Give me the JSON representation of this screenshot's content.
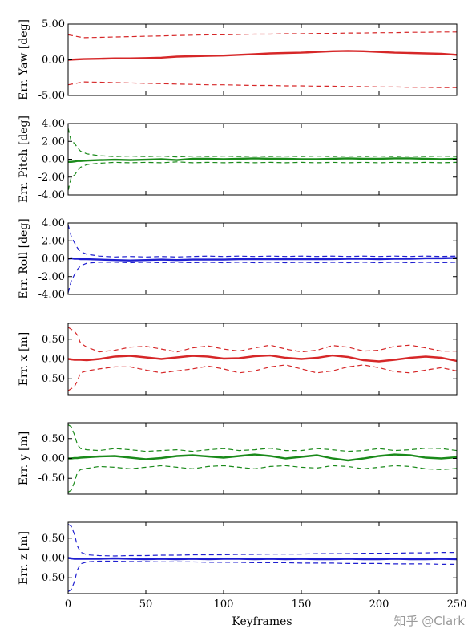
{
  "watermark": "知乎 @Clark",
  "xlabel": "Keyframes",
  "chart_data": [
    {
      "type": "line",
      "ylabel": "Err. Yaw [deg]",
      "ylim": [
        -5,
        5
      ],
      "yticks": [
        "5.00",
        "0.00",
        "-5.00"
      ],
      "ytick_values": [
        5,
        0,
        -5
      ],
      "color": "#d62728",
      "x": [
        0,
        10,
        20,
        30,
        40,
        50,
        60,
        70,
        80,
        90,
        100,
        110,
        120,
        130,
        140,
        150,
        160,
        170,
        180,
        190,
        200,
        210,
        220,
        230,
        240,
        250
      ],
      "series": [
        {
          "style": "solid",
          "values": [
            0.0,
            0.1,
            0.15,
            0.2,
            0.2,
            0.25,
            0.3,
            0.45,
            0.5,
            0.55,
            0.6,
            0.7,
            0.8,
            0.9,
            0.95,
            1.0,
            1.1,
            1.2,
            1.25,
            1.2,
            1.1,
            1.0,
            0.95,
            0.9,
            0.85,
            0.7
          ]
        },
        {
          "style": "dashed",
          "values": [
            3.5,
            3.1,
            3.15,
            3.2,
            3.25,
            3.3,
            3.35,
            3.4,
            3.45,
            3.5,
            3.5,
            3.55,
            3.6,
            3.6,
            3.65,
            3.65,
            3.7,
            3.7,
            3.75,
            3.75,
            3.8,
            3.8,
            3.85,
            3.85,
            3.9,
            3.9
          ]
        },
        {
          "style": "dashed",
          "values": [
            -3.5,
            -3.1,
            -3.15,
            -3.2,
            -3.25,
            -3.3,
            -3.35,
            -3.4,
            -3.45,
            -3.5,
            -3.5,
            -3.55,
            -3.6,
            -3.6,
            -3.65,
            -3.65,
            -3.7,
            -3.7,
            -3.75,
            -3.75,
            -3.8,
            -3.8,
            -3.85,
            -3.85,
            -3.9,
            -3.9
          ]
        }
      ]
    },
    {
      "type": "line",
      "ylabel": "Err. Pitch [deg]",
      "ylim": [
        -4,
        4
      ],
      "yticks": [
        "4.00",
        "2.00",
        "0.00",
        "-2.00",
        "-4.00"
      ],
      "ytick_values": [
        4,
        2,
        0,
        -2,
        -4
      ],
      "color": "#1a8a1a",
      "x": [
        0,
        2,
        4,
        6,
        8,
        12,
        20,
        30,
        40,
        50,
        60,
        70,
        80,
        90,
        100,
        110,
        120,
        130,
        140,
        150,
        160,
        170,
        180,
        190,
        200,
        210,
        220,
        230,
        240,
        250
      ],
      "series": [
        {
          "style": "solid",
          "values": [
            -0.3,
            -0.3,
            -0.25,
            -0.2,
            -0.2,
            -0.15,
            -0.1,
            -0.05,
            -0.1,
            -0.05,
            0.0,
            -0.1,
            0.05,
            0.05,
            0.0,
            0.05,
            0.1,
            0.05,
            0.05,
            0.0,
            0.0,
            0.05,
            0.1,
            0.05,
            0.05,
            0.1,
            0.1,
            0.05,
            0.0,
            0.05
          ]
        },
        {
          "style": "dashed",
          "values": [
            3.5,
            2.0,
            1.8,
            1.3,
            0.9,
            0.6,
            0.4,
            0.3,
            0.35,
            0.3,
            0.35,
            0.25,
            0.35,
            0.3,
            0.35,
            0.3,
            0.35,
            0.3,
            0.35,
            0.3,
            0.35,
            0.3,
            0.35,
            0.3,
            0.35,
            0.3,
            0.35,
            0.3,
            0.35,
            0.3
          ]
        },
        {
          "style": "dashed",
          "values": [
            -3.5,
            -2.0,
            -1.8,
            -1.3,
            -0.9,
            -0.6,
            -0.45,
            -0.35,
            -0.4,
            -0.35,
            -0.4,
            -0.3,
            -0.4,
            -0.35,
            -0.4,
            -0.35,
            -0.4,
            -0.35,
            -0.4,
            -0.35,
            -0.4,
            -0.35,
            -0.4,
            -0.35,
            -0.4,
            -0.35,
            -0.4,
            -0.35,
            -0.4,
            -0.35
          ]
        }
      ]
    },
    {
      "type": "line",
      "ylabel": "Err. Roll [deg]",
      "ylim": [
        -4,
        4
      ],
      "yticks": [
        "4.00",
        "2.00",
        "0.00",
        "-2.00",
        "-4.00"
      ],
      "ytick_values": [
        4,
        2,
        0,
        -2,
        -4
      ],
      "color": "#1f1fd0",
      "x": [
        0,
        2,
        4,
        6,
        8,
        12,
        20,
        30,
        40,
        50,
        60,
        70,
        80,
        90,
        100,
        110,
        120,
        130,
        140,
        150,
        160,
        170,
        180,
        190,
        200,
        210,
        220,
        230,
        240,
        250
      ],
      "series": [
        {
          "style": "solid",
          "values": [
            0.0,
            0.05,
            0.0,
            0.0,
            -0.05,
            -0.05,
            -0.1,
            -0.15,
            -0.2,
            -0.15,
            -0.1,
            -0.15,
            -0.1,
            -0.1,
            -0.1,
            -0.05,
            -0.05,
            -0.05,
            -0.05,
            -0.05,
            -0.05,
            -0.05,
            0.0,
            0.0,
            -0.05,
            0.0,
            0.0,
            0.05,
            0.05,
            0.1
          ]
        },
        {
          "style": "dashed",
          "values": [
            3.8,
            2.5,
            1.8,
            1.2,
            0.8,
            0.5,
            0.3,
            0.2,
            0.25,
            0.2,
            0.25,
            0.2,
            0.25,
            0.3,
            0.25,
            0.3,
            0.25,
            0.3,
            0.25,
            0.3,
            0.25,
            0.3,
            0.25,
            0.3,
            0.25,
            0.3,
            0.25,
            0.3,
            0.25,
            0.3
          ]
        },
        {
          "style": "dashed",
          "values": [
            -3.8,
            -2.5,
            -1.8,
            -1.2,
            -0.8,
            -0.5,
            -0.4,
            -0.4,
            -0.45,
            -0.4,
            -0.45,
            -0.4,
            -0.45,
            -0.4,
            -0.45,
            -0.4,
            -0.45,
            -0.4,
            -0.45,
            -0.4,
            -0.45,
            -0.4,
            -0.45,
            -0.4,
            -0.45,
            -0.4,
            -0.45,
            -0.4,
            -0.45,
            -0.4
          ]
        }
      ]
    },
    {
      "type": "line",
      "ylabel": "Err. x [m]",
      "ylim": [
        -0.9,
        0.9
      ],
      "yticks": [
        "0.50",
        "0.00",
        "-0.50"
      ],
      "ytick_values": [
        0.5,
        0,
        -0.5
      ],
      "color": "#d62728",
      "x": [
        0,
        2,
        4,
        6,
        8,
        12,
        20,
        30,
        40,
        50,
        60,
        70,
        80,
        90,
        100,
        110,
        120,
        130,
        140,
        150,
        160,
        170,
        180,
        190,
        200,
        210,
        220,
        230,
        240,
        250
      ],
      "series": [
        {
          "style": "solid",
          "values": [
            0.0,
            -0.01,
            -0.02,
            -0.02,
            -0.02,
            -0.03,
            0.0,
            0.06,
            0.08,
            0.04,
            0.0,
            0.04,
            0.08,
            0.06,
            0.01,
            0.02,
            0.07,
            0.09,
            0.03,
            0.0,
            0.03,
            0.09,
            0.05,
            -0.03,
            -0.06,
            -0.02,
            0.03,
            0.06,
            0.03,
            -0.05
          ]
        },
        {
          "style": "dashed",
          "values": [
            0.8,
            0.75,
            0.7,
            0.6,
            0.4,
            0.3,
            0.18,
            0.22,
            0.3,
            0.32,
            0.25,
            0.18,
            0.28,
            0.33,
            0.25,
            0.2,
            0.28,
            0.35,
            0.25,
            0.18,
            0.22,
            0.34,
            0.3,
            0.2,
            0.22,
            0.32,
            0.35,
            0.28,
            0.2,
            0.2
          ]
        },
        {
          "style": "dashed",
          "values": [
            -0.8,
            -0.75,
            -0.7,
            -0.55,
            -0.35,
            -0.3,
            -0.25,
            -0.2,
            -0.2,
            -0.28,
            -0.35,
            -0.3,
            -0.25,
            -0.18,
            -0.25,
            -0.35,
            -0.3,
            -0.2,
            -0.15,
            -0.25,
            -0.35,
            -0.3,
            -0.2,
            -0.15,
            -0.22,
            -0.32,
            -0.35,
            -0.28,
            -0.22,
            -0.3
          ]
        }
      ]
    },
    {
      "type": "line",
      "ylabel": "Err. y [m]",
      "ylim": [
        -0.9,
        0.9
      ],
      "yticks": [
        "0.50",
        "0.00",
        "-0.50"
      ],
      "ytick_values": [
        0.5,
        0,
        -0.5
      ],
      "color": "#1a8a1a",
      "x": [
        0,
        2,
        4,
        6,
        8,
        12,
        20,
        30,
        40,
        50,
        60,
        70,
        80,
        90,
        100,
        110,
        120,
        130,
        140,
        150,
        160,
        170,
        180,
        190,
        200,
        210,
        220,
        230,
        240,
        250
      ],
      "series": [
        {
          "style": "solid",
          "values": [
            0.0,
            0.0,
            0.01,
            0.01,
            0.02,
            0.03,
            0.05,
            0.06,
            0.02,
            -0.02,
            0.01,
            0.06,
            0.08,
            0.05,
            0.02,
            0.06,
            0.1,
            0.06,
            0.0,
            0.04,
            0.08,
            0.0,
            -0.05,
            0.0,
            0.06,
            0.1,
            0.08,
            0.02,
            0.0,
            0.03
          ]
        },
        {
          "style": "dashed",
          "values": [
            0.85,
            0.8,
            0.6,
            0.35,
            0.25,
            0.22,
            0.2,
            0.25,
            0.22,
            0.18,
            0.2,
            0.22,
            0.18,
            0.22,
            0.25,
            0.2,
            0.22,
            0.26,
            0.2,
            0.2,
            0.25,
            0.22,
            0.18,
            0.2,
            0.25,
            0.2,
            0.22,
            0.26,
            0.25,
            0.2
          ]
        },
        {
          "style": "dashed",
          "values": [
            -0.85,
            -0.8,
            -0.6,
            -0.35,
            -0.28,
            -0.25,
            -0.2,
            -0.22,
            -0.26,
            -0.22,
            -0.18,
            -0.22,
            -0.26,
            -0.2,
            -0.18,
            -0.22,
            -0.26,
            -0.2,
            -0.18,
            -0.22,
            -0.24,
            -0.18,
            -0.2,
            -0.26,
            -0.22,
            -0.18,
            -0.2,
            -0.26,
            -0.28,
            -0.25
          ]
        }
      ]
    },
    {
      "type": "line",
      "ylabel": "Err. z [m]",
      "ylim": [
        -0.9,
        0.9
      ],
      "yticks": [
        "0.50",
        "0.00",
        "-0.50"
      ],
      "ytick_values": [
        0.5,
        0,
        -0.5
      ],
      "color": "#1f1fd0",
      "x": [
        0,
        2,
        4,
        6,
        8,
        12,
        20,
        30,
        40,
        50,
        60,
        70,
        80,
        90,
        100,
        110,
        120,
        130,
        140,
        150,
        160,
        170,
        180,
        190,
        200,
        210,
        220,
        230,
        240,
        250
      ],
      "series": [
        {
          "style": "solid",
          "values": [
            0.0,
            -0.01,
            -0.02,
            -0.02,
            -0.02,
            -0.02,
            -0.02,
            -0.01,
            -0.02,
            -0.03,
            -0.02,
            -0.03,
            -0.02,
            -0.03,
            -0.02,
            -0.02,
            -0.03,
            -0.02,
            -0.03,
            -0.02,
            -0.03,
            -0.03,
            -0.02,
            -0.03,
            -0.03,
            -0.02,
            -0.03,
            -0.03,
            -0.02,
            -0.03
          ]
        },
        {
          "style": "dashed",
          "values": [
            0.85,
            0.8,
            0.6,
            0.3,
            0.15,
            0.08,
            0.06,
            0.05,
            0.06,
            0.06,
            0.07,
            0.07,
            0.08,
            0.08,
            0.08,
            0.09,
            0.09,
            0.1,
            0.1,
            0.1,
            0.11,
            0.11,
            0.11,
            0.12,
            0.12,
            0.12,
            0.13,
            0.13,
            0.14,
            0.14
          ]
        },
        {
          "style": "dashed",
          "values": [
            -0.85,
            -0.8,
            -0.6,
            -0.3,
            -0.15,
            -0.1,
            -0.08,
            -0.08,
            -0.09,
            -0.09,
            -0.1,
            -0.1,
            -0.1,
            -0.11,
            -0.11,
            -0.11,
            -0.12,
            -0.12,
            -0.12,
            -0.13,
            -0.13,
            -0.13,
            -0.14,
            -0.14,
            -0.14,
            -0.15,
            -0.15,
            -0.15,
            -0.16,
            -0.16
          ]
        }
      ]
    }
  ],
  "xaxis": {
    "xlim": [
      0,
      250
    ],
    "ticks": [
      "0",
      "50",
      "100",
      "150",
      "200",
      "250"
    ],
    "tick_values": [
      0,
      50,
      100,
      150,
      200,
      250
    ]
  }
}
